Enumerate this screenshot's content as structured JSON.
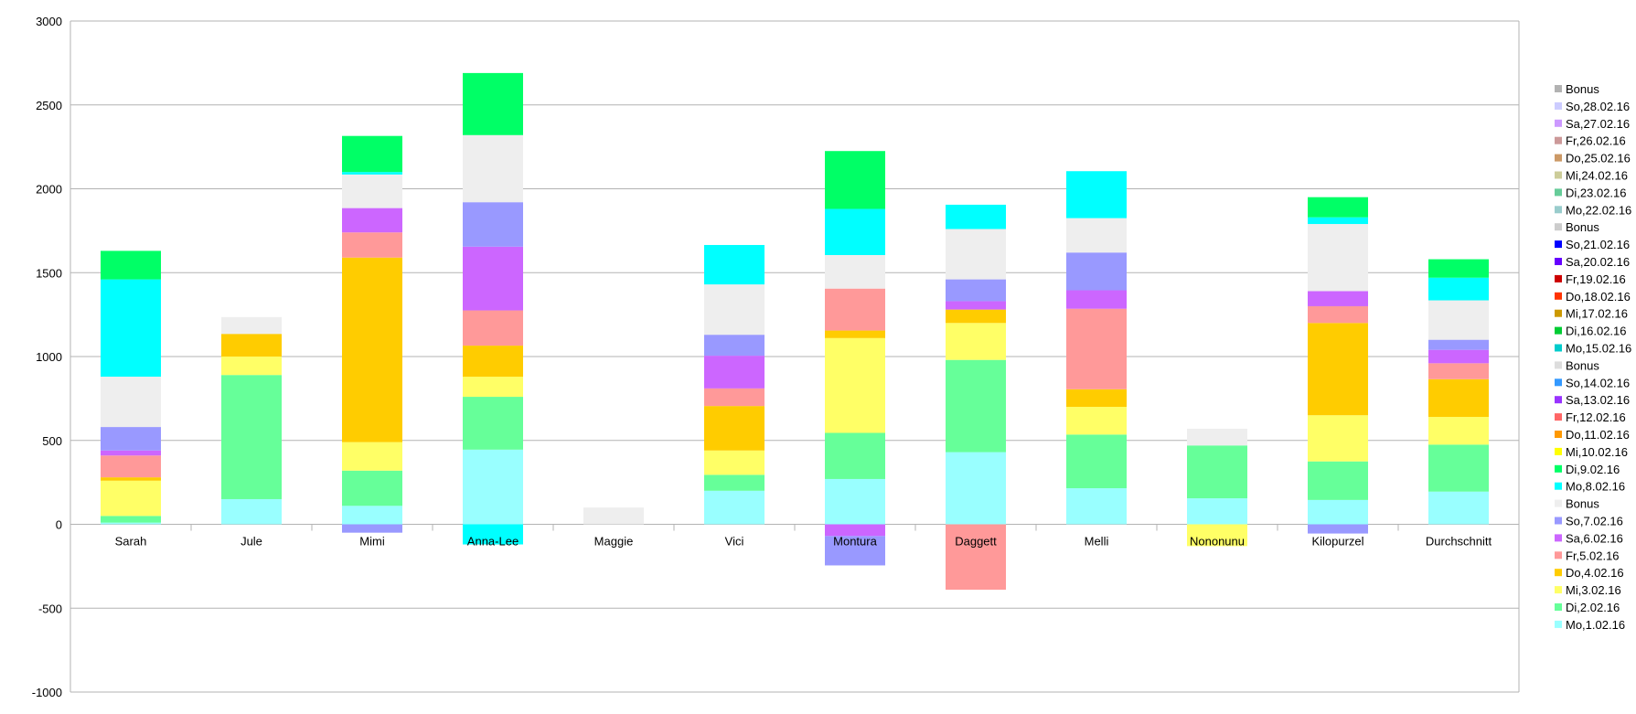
{
  "chart_data": {
    "type": "bar",
    "stacked": true,
    "title": "",
    "xlabel": "",
    "ylabel": "",
    "ylim": [
      -1000,
      3000
    ],
    "yticks": [
      -1000,
      -500,
      0,
      500,
      1000,
      1500,
      2000,
      2500,
      3000
    ],
    "grid": true,
    "legend_position": "right",
    "categories": [
      "Sarah",
      "Jule",
      "Mimi",
      "Anna-Lee",
      "Maggie",
      "Vici",
      "Montura",
      "Daggett",
      "Melli",
      "Nononunu",
      "Kilopurzel",
      "Durchschnitt"
    ],
    "series": [
      {
        "name": "Mo,1.02.16",
        "color": "#99ffff",
        "values": [
          10,
          150,
          110,
          445,
          0,
          200,
          270,
          430,
          215,
          155,
          145,
          195
        ]
      },
      {
        "name": "Di,2.02.16",
        "color": "#66ff99",
        "values": [
          40,
          740,
          210,
          315,
          0,
          95,
          275,
          550,
          320,
          315,
          230,
          280
        ]
      },
      {
        "name": "Mi,3.02.16",
        "color": "#ffff66",
        "values": [
          210,
          110,
          170,
          120,
          0,
          145,
          565,
          220,
          165,
          -130,
          275,
          165
        ]
      },
      {
        "name": "Do,4.02.16",
        "color": "#ffcc00",
        "values": [
          20,
          135,
          1100,
          185,
          0,
          265,
          45,
          80,
          105,
          0,
          550,
          225
        ]
      },
      {
        "name": "Fr,5.02.16",
        "color": "#ff9999",
        "values": [
          130,
          0,
          150,
          210,
          0,
          105,
          250,
          -390,
          480,
          0,
          100,
          95
        ]
      },
      {
        "name": "Sa,6.02.16",
        "color": "#cc66ff",
        "values": [
          30,
          0,
          145,
          380,
          0,
          195,
          -70,
          50,
          110,
          0,
          90,
          80
        ]
      },
      {
        "name": "So,7.02.16",
        "color": "#9999ff",
        "values": [
          140,
          0,
          -50,
          265,
          0,
          125,
          -175,
          130,
          225,
          0,
          -55,
          60
        ]
      },
      {
        "name": "Bonus",
        "color": "#eeeeee",
        "values": [
          300,
          100,
          200,
          400,
          100,
          300,
          200,
          300,
          205,
          100,
          400,
          235
        ]
      },
      {
        "name": "Mo,8.02.16",
        "color": "#00ffff",
        "values": [
          580,
          0,
          15,
          -120,
          0,
          235,
          275,
          145,
          280,
          0,
          40,
          135
        ]
      },
      {
        "name": "Di,9.02.16",
        "color": "#00ff66",
        "values": [
          170,
          0,
          215,
          370,
          0,
          0,
          345,
          0,
          0,
          0,
          120,
          110
        ]
      },
      {
        "name": "Mi,10.02.16",
        "color": "#ffff00",
        "values": [
          0,
          0,
          0,
          0,
          0,
          0,
          0,
          0,
          0,
          0,
          0,
          0
        ]
      },
      {
        "name": "Do,11.02.16",
        "color": "#ff9900",
        "values": [
          0,
          0,
          0,
          0,
          0,
          0,
          0,
          0,
          0,
          0,
          0,
          0
        ]
      },
      {
        "name": "Fr,12.02.16",
        "color": "#ff6666",
        "values": [
          0,
          0,
          0,
          0,
          0,
          0,
          0,
          0,
          0,
          0,
          0,
          0
        ]
      },
      {
        "name": "Sa,13.02.16",
        "color": "#9933ff",
        "values": [
          0,
          0,
          0,
          0,
          0,
          0,
          0,
          0,
          0,
          0,
          0,
          0
        ]
      },
      {
        "name": "So,14.02.16",
        "color": "#3399ff",
        "values": [
          0,
          0,
          0,
          0,
          0,
          0,
          0,
          0,
          0,
          0,
          0,
          0
        ]
      },
      {
        "name": "Bonus",
        "color": "#dddddd",
        "values": [
          0,
          0,
          0,
          0,
          0,
          0,
          0,
          0,
          0,
          0,
          0,
          0
        ]
      },
      {
        "name": "Mo,15.02.16",
        "color": "#00cccc",
        "values": [
          0,
          0,
          0,
          0,
          0,
          0,
          0,
          0,
          0,
          0,
          0,
          0
        ]
      },
      {
        "name": "Di,16.02.16",
        "color": "#00cc33",
        "values": [
          0,
          0,
          0,
          0,
          0,
          0,
          0,
          0,
          0,
          0,
          0,
          0
        ]
      },
      {
        "name": "Mi,17.02.16",
        "color": "#cc9900",
        "values": [
          0,
          0,
          0,
          0,
          0,
          0,
          0,
          0,
          0,
          0,
          0,
          0
        ]
      },
      {
        "name": "Do,18.02.16",
        "color": "#ff3300",
        "values": [
          0,
          0,
          0,
          0,
          0,
          0,
          0,
          0,
          0,
          0,
          0,
          0
        ]
      },
      {
        "name": "Fr,19.02.16",
        "color": "#cc0000",
        "values": [
          0,
          0,
          0,
          0,
          0,
          0,
          0,
          0,
          0,
          0,
          0,
          0
        ]
      },
      {
        "name": "Sa,20.02.16",
        "color": "#6600ff",
        "values": [
          0,
          0,
          0,
          0,
          0,
          0,
          0,
          0,
          0,
          0,
          0,
          0
        ]
      },
      {
        "name": "So,21.02.16",
        "color": "#0000ff",
        "values": [
          0,
          0,
          0,
          0,
          0,
          0,
          0,
          0,
          0,
          0,
          0,
          0
        ]
      },
      {
        "name": "Bonus",
        "color": "#cccccc",
        "values": [
          0,
          0,
          0,
          0,
          0,
          0,
          0,
          0,
          0,
          0,
          0,
          0
        ]
      },
      {
        "name": "Mo,22.02.16",
        "color": "#99cccc",
        "values": [
          0,
          0,
          0,
          0,
          0,
          0,
          0,
          0,
          0,
          0,
          0,
          0
        ]
      },
      {
        "name": "Di,23.02.16",
        "color": "#66cc99",
        "values": [
          0,
          0,
          0,
          0,
          0,
          0,
          0,
          0,
          0,
          0,
          0,
          0
        ]
      },
      {
        "name": "Mi,24.02.16",
        "color": "#cccc99",
        "values": [
          0,
          0,
          0,
          0,
          0,
          0,
          0,
          0,
          0,
          0,
          0,
          0
        ]
      },
      {
        "name": "Do,25.02.16",
        "color": "#cc9966",
        "values": [
          0,
          0,
          0,
          0,
          0,
          0,
          0,
          0,
          0,
          0,
          0,
          0
        ]
      },
      {
        "name": "Fr,26.02.16",
        "color": "#cc9999",
        "values": [
          0,
          0,
          0,
          0,
          0,
          0,
          0,
          0,
          0,
          0,
          0,
          0
        ]
      },
      {
        "name": "Sa,27.02.16",
        "color": "#cc99ff",
        "values": [
          0,
          0,
          0,
          0,
          0,
          0,
          0,
          0,
          0,
          0,
          0,
          0
        ]
      },
      {
        "name": "So,28.02.16",
        "color": "#ccccff",
        "values": [
          0,
          0,
          0,
          0,
          0,
          0,
          0,
          0,
          0,
          0,
          0,
          0
        ]
      },
      {
        "name": "Bonus",
        "color": "#b2b2b2",
        "values": [
          0,
          0,
          0,
          0,
          0,
          0,
          0,
          0,
          0,
          0,
          0,
          0
        ]
      }
    ]
  }
}
